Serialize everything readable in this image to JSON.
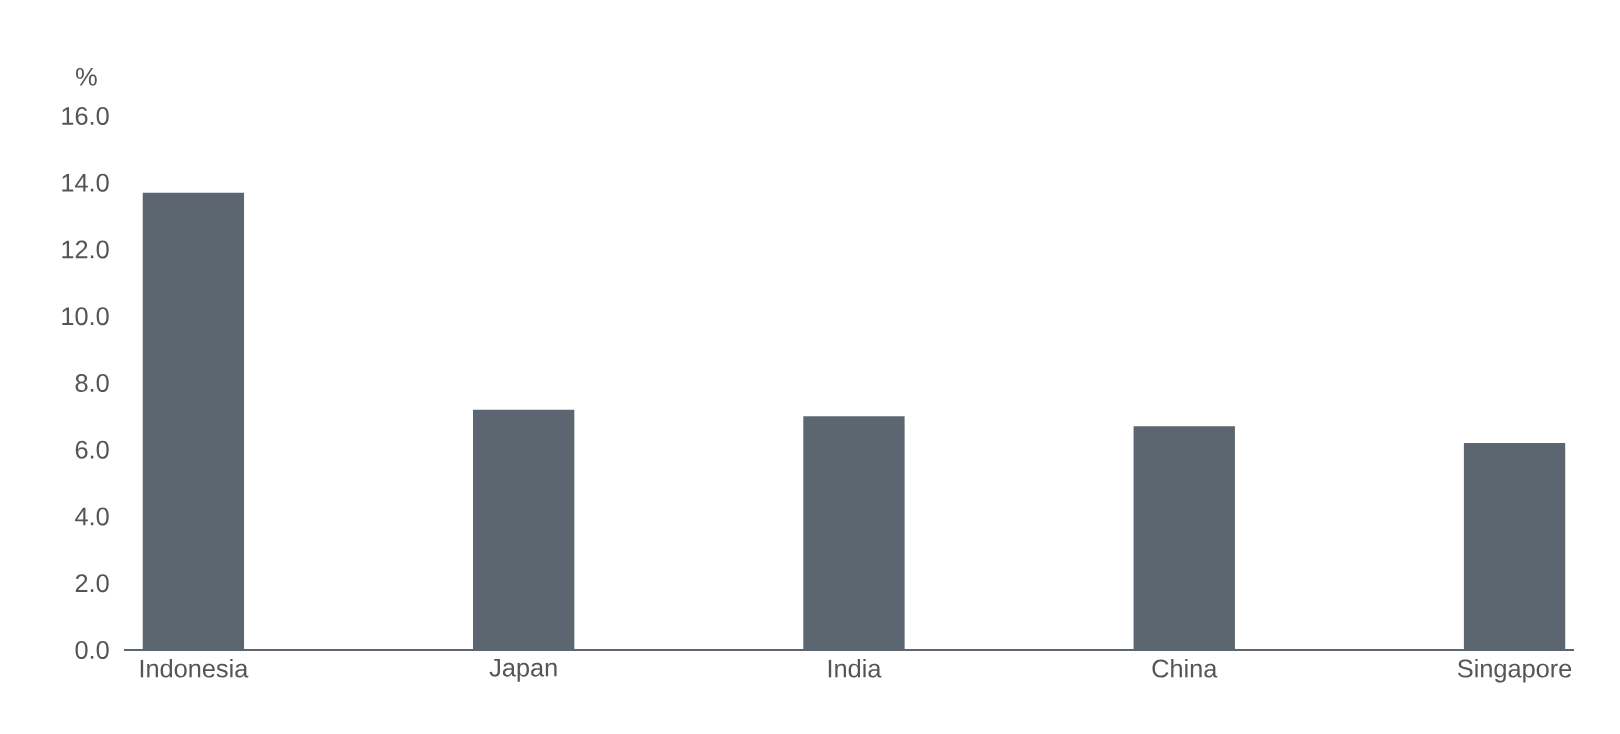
{
  "chart_data": {
    "type": "bar",
    "ylabel": "%",
    "categories": [
      "Indonesia",
      "Japan",
      "India",
      "China",
      "Singapore"
    ],
    "values": [
      13.7,
      7.2,
      7.0,
      6.7,
      6.2
    ],
    "color": "#5c6670",
    "ylim": [
      0,
      16
    ],
    "yticks": [
      {
        "value": 0,
        "label": "0.0"
      },
      {
        "value": 2,
        "label": "2.0"
      },
      {
        "value": 4,
        "label": "4.0"
      },
      {
        "value": 6,
        "label": "6.0"
      },
      {
        "value": 8,
        "label": "8.0"
      },
      {
        "value": 10,
        "label": "10.0"
      },
      {
        "value": 12,
        "label": "12.0"
      },
      {
        "value": 14,
        "label": "14.0"
      },
      {
        "value": 16,
        "label": "16.0"
      }
    ],
    "line_style": "solid"
  }
}
